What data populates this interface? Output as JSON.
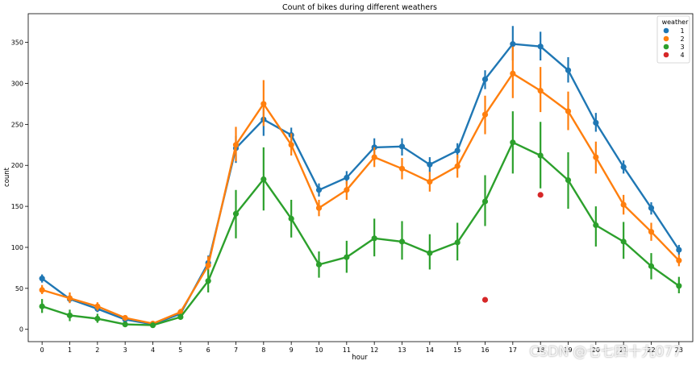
{
  "chart_data": {
    "type": "line",
    "title": "Count of bikes during different weathers",
    "xlabel": "hour",
    "ylabel": "count",
    "x": [
      0,
      1,
      2,
      3,
      4,
      5,
      6,
      7,
      8,
      9,
      10,
      11,
      12,
      13,
      14,
      15,
      16,
      17,
      18,
      19,
      20,
      21,
      22,
      23
    ],
    "xlim": [
      -0.5,
      23.5
    ],
    "ylim": [
      -15,
      385
    ],
    "yticks": [
      0,
      50,
      100,
      150,
      200,
      250,
      300,
      350
    ],
    "grid": false,
    "legend": {
      "title": "weather",
      "placement": "top-right"
    },
    "series": [
      {
        "name": "1",
        "color": "#1f77b4",
        "values": [
          62,
          37,
          25,
          12,
          6,
          19,
          81,
          221,
          256,
          237,
          170,
          185,
          222,
          223,
          201,
          218,
          305,
          348,
          345,
          316,
          252,
          198,
          148,
          97
        ],
        "err_low": [
          57,
          33,
          21,
          10,
          5,
          16,
          73,
          203,
          236,
          227,
          162,
          177,
          211,
          212,
          192,
          209,
          293,
          328,
          328,
          301,
          241,
          190,
          140,
          91
        ],
        "err_high": [
          67,
          42,
          29,
          14,
          7,
          22,
          90,
          236,
          270,
          246,
          178,
          193,
          233,
          233,
          210,
          227,
          316,
          370,
          363,
          332,
          264,
          206,
          155,
          103
        ]
      },
      {
        "name": "2",
        "color": "#ff7f0e",
        "values": [
          48,
          38,
          28,
          14,
          7,
          21,
          78,
          225,
          275,
          225,
          148,
          170,
          210,
          196,
          180,
          199,
          262,
          312,
          291,
          266,
          210,
          152,
          119,
          84
        ],
        "err_low": [
          43,
          32,
          23,
          11,
          5,
          17,
          68,
          205,
          248,
          212,
          138,
          158,
          198,
          183,
          168,
          185,
          238,
          282,
          265,
          243,
          190,
          140,
          108,
          77
        ],
        "err_high": [
          54,
          45,
          33,
          17,
          9,
          25,
          89,
          247,
          304,
          239,
          158,
          181,
          222,
          209,
          192,
          213,
          285,
          345,
          320,
          290,
          229,
          164,
          130,
          91
        ]
      },
      {
        "name": "3",
        "color": "#2ca02c",
        "values": [
          28,
          17,
          13,
          6,
          5,
          15,
          59,
          141,
          183,
          135,
          79,
          88,
          111,
          107,
          93,
          106,
          156,
          228,
          212,
          182,
          127,
          107,
          77,
          53
        ],
        "err_low": [
          20,
          10,
          8,
          4,
          3,
          12,
          45,
          111,
          145,
          112,
          63,
          69,
          89,
          85,
          73,
          84,
          126,
          190,
          172,
          147,
          101,
          86,
          61,
          44
        ],
        "err_high": [
          37,
          24,
          19,
          9,
          7,
          19,
          73,
          170,
          222,
          158,
          95,
          108,
          135,
          132,
          116,
          130,
          188,
          266,
          253,
          216,
          150,
          131,
          93,
          64
        ]
      },
      {
        "name": "4",
        "color": "#d62728",
        "points": [
          {
            "x": 16,
            "y": 36
          },
          {
            "x": 18,
            "y": 164
          }
        ]
      }
    ]
  },
  "watermark": "CSDN @七七四十九077"
}
